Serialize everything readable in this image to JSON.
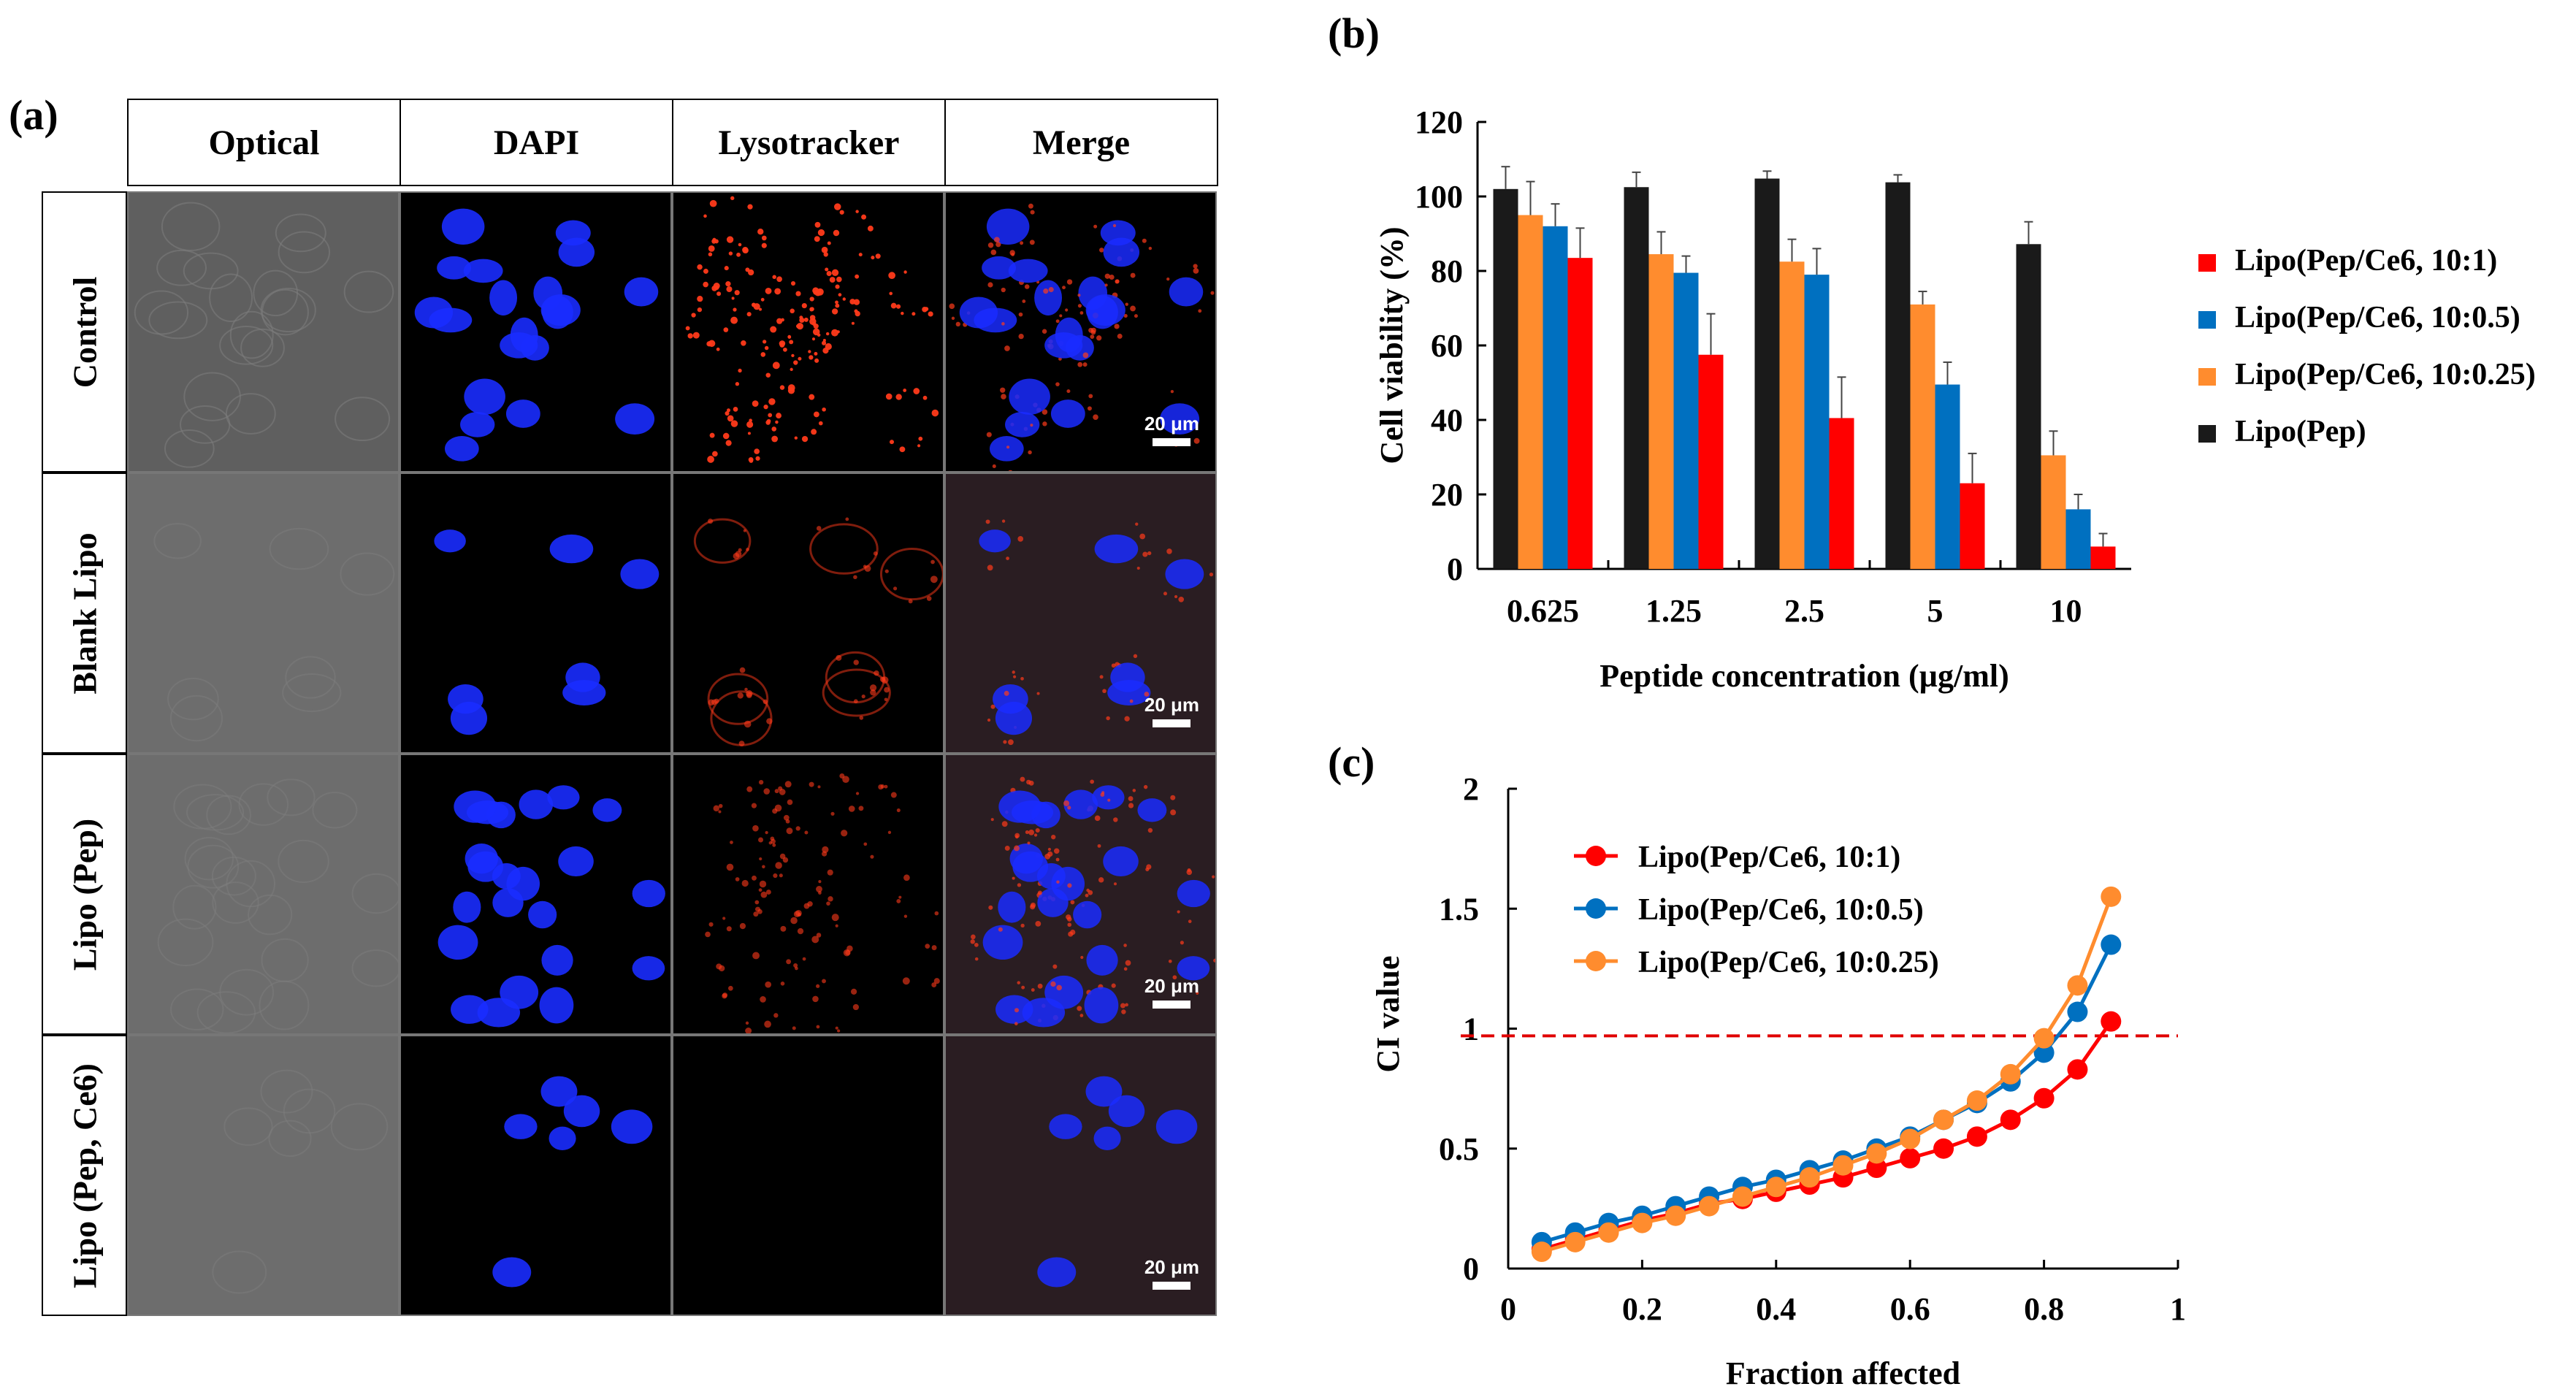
{
  "panel_a": {
    "label": "(a)",
    "columns": [
      "Optical",
      "DAPI",
      "Lysotracker",
      "Merge"
    ],
    "rows": [
      "Control",
      "Blank Lipo",
      "Lipo (Pep)",
      "Lipo (Pep, Ce6)"
    ],
    "scale_bar": "20 μm"
  },
  "panel_b": {
    "label": "(b)"
  },
  "panel_c": {
    "label": "(c)"
  },
  "colors": {
    "red": "#ff0000",
    "blue": "#0070c0",
    "orange": "#ff8c2e",
    "black": "#1a1a1a",
    "dapi": "#1a2cff",
    "lyso": "#ff3a1a"
  },
  "chart_data": [
    {
      "type": "bar",
      "title": "",
      "xlabel": "Peptide concentration (µg/ml)",
      "ylabel": "Cell viability (%)",
      "ylim": [
        0,
        120
      ],
      "yticks": [
        0,
        20,
        40,
        60,
        80,
        100,
        120
      ],
      "categories": [
        "0.625",
        "1.25",
        "2.5",
        "5",
        "10"
      ],
      "legend_position": "right",
      "series": [
        {
          "name": "Lipo(Pep)",
          "color": "#1a1a1a",
          "values": [
            102,
            102.5,
            104.8,
            103.8,
            87.2
          ],
          "errors": [
            6,
            4,
            2,
            2,
            6
          ]
        },
        {
          "name": "Lipo(Pep/Ce6, 10:0.25)",
          "color": "#ff8c2e",
          "values": [
            95,
            84.5,
            82.5,
            71,
            30.5
          ],
          "errors": [
            9,
            6,
            6,
            3.5,
            6.5
          ]
        },
        {
          "name": "Lipo(Pep/Ce6, 10:0.5)",
          "color": "#0070c0",
          "values": [
            92,
            79.5,
            79,
            49.5,
            16
          ],
          "errors": [
            6,
            4.5,
            7,
            6,
            4
          ]
        },
        {
          "name": "Lipo(Pep/Ce6, 10:1)",
          "color": "#ff0000",
          "values": [
            83.5,
            57.5,
            40.5,
            23,
            6
          ],
          "errors": [
            8,
            11,
            11,
            8,
            3.5
          ]
        }
      ],
      "legend_order": [
        "Lipo(Pep/Ce6, 10:1)",
        "Lipo(Pep/Ce6, 10:0.5)",
        "Lipo(Pep/Ce6, 10:0.25)",
        "Lipo(Pep)"
      ]
    },
    {
      "type": "line",
      "title": "",
      "xlabel": "Fraction affected",
      "ylabel": "CI value",
      "xlim": [
        0,
        1
      ],
      "ylim": [
        0,
        2
      ],
      "xticks": [
        0,
        0.2,
        0.4,
        0.6,
        0.8,
        1
      ],
      "yticks": [
        0,
        0.5,
        1,
        1.5,
        2
      ],
      "x": [
        0.05,
        0.1,
        0.15,
        0.2,
        0.25,
        0.3,
        0.35,
        0.4,
        0.45,
        0.5,
        0.55,
        0.6,
        0.65,
        0.7,
        0.75,
        0.8,
        0.85,
        0.9
      ],
      "reference_line": {
        "y": 0.97,
        "style": "dashed",
        "color": "#e00000"
      },
      "legend_position": "top-left",
      "series": [
        {
          "name": "Lipo(Pep/Ce6, 10:1)",
          "color": "#ff0000",
          "values": [
            0.08,
            0.12,
            0.16,
            0.2,
            0.23,
            0.27,
            0.29,
            0.32,
            0.35,
            0.38,
            0.42,
            0.46,
            0.5,
            0.55,
            0.62,
            0.71,
            0.83,
            1.03
          ]
        },
        {
          "name": "Lipo(Pep/Ce6, 10:0.5)",
          "color": "#0070c0",
          "values": [
            0.11,
            0.15,
            0.19,
            0.22,
            0.26,
            0.3,
            0.34,
            0.37,
            0.41,
            0.45,
            0.5,
            0.55,
            0.62,
            0.69,
            0.78,
            0.9,
            1.07,
            1.35
          ]
        },
        {
          "name": "Lipo(Pep/Ce6, 10:0.25)",
          "color": "#ff8c2e",
          "values": [
            0.07,
            0.11,
            0.15,
            0.19,
            0.22,
            0.26,
            0.3,
            0.34,
            0.38,
            0.43,
            0.48,
            0.54,
            0.62,
            0.7,
            0.81,
            0.96,
            1.18,
            1.55
          ]
        }
      ]
    }
  ]
}
